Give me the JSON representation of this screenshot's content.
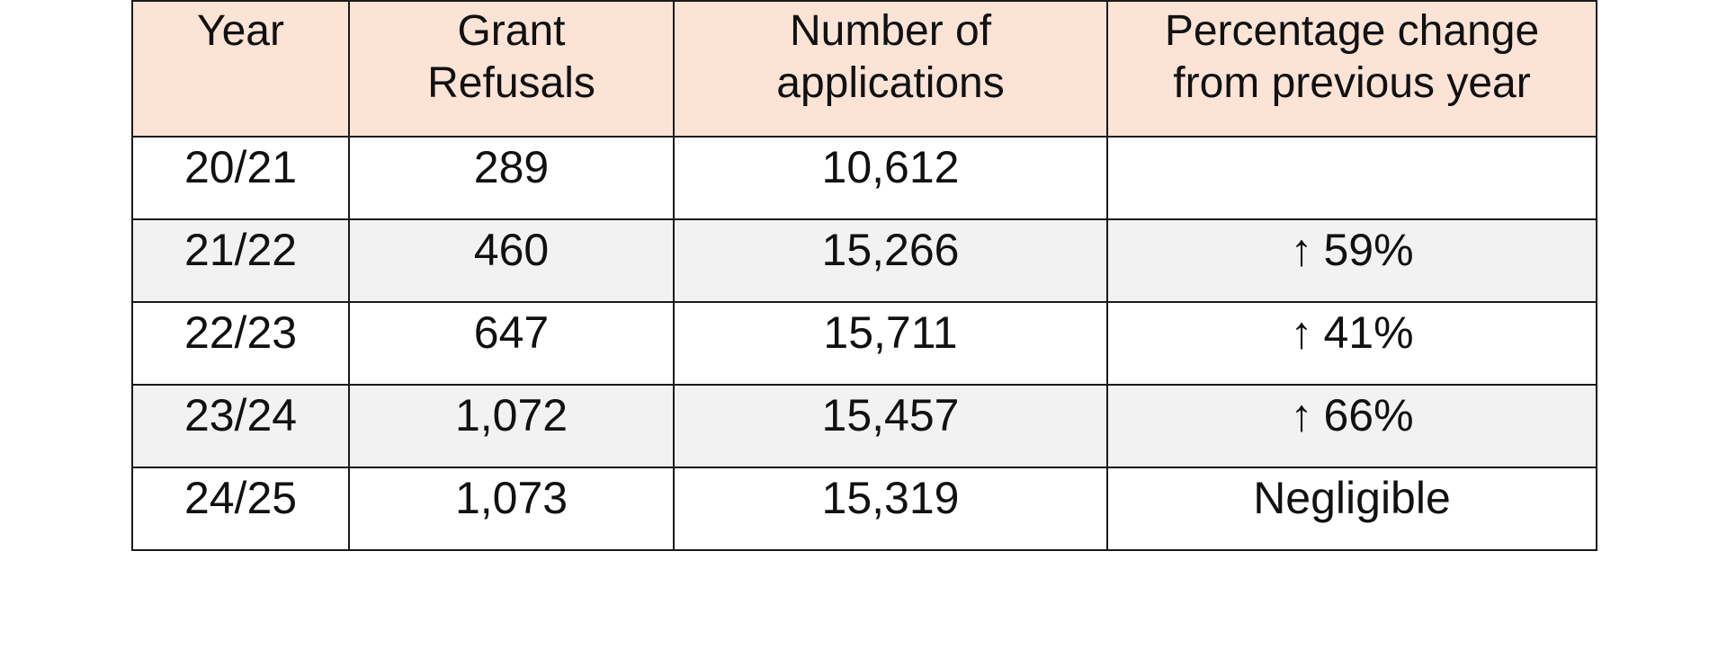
{
  "table": {
    "headers": [
      "Year",
      "Grant\nRefusals",
      "Number of\napplications",
      "Percentage change\nfrom previous year"
    ],
    "rows": [
      {
        "year": "20/21",
        "refusals": "289",
        "applications": "10,612",
        "change_arrow": "",
        "change": ""
      },
      {
        "year": "21/22",
        "refusals": "460",
        "applications": "15,266",
        "change_arrow": "↑",
        "change": "59%"
      },
      {
        "year": "22/23",
        "refusals": "647",
        "applications": "15,711",
        "change_arrow": "↑",
        "change": "41%"
      },
      {
        "year": "23/24",
        "refusals": "1,072",
        "applications": "15,457",
        "change_arrow": "↑",
        "change": "66%"
      },
      {
        "year": "24/25",
        "refusals": "1,073",
        "applications": "15,319",
        "change_arrow": "",
        "change": "Negligible"
      }
    ]
  },
  "colors": {
    "header_background": "#fbe3d6",
    "shaded_row_background": "#f2f2f2",
    "border": "#1a1a1a"
  },
  "icons": {
    "increase": "arrow-up-icon"
  }
}
